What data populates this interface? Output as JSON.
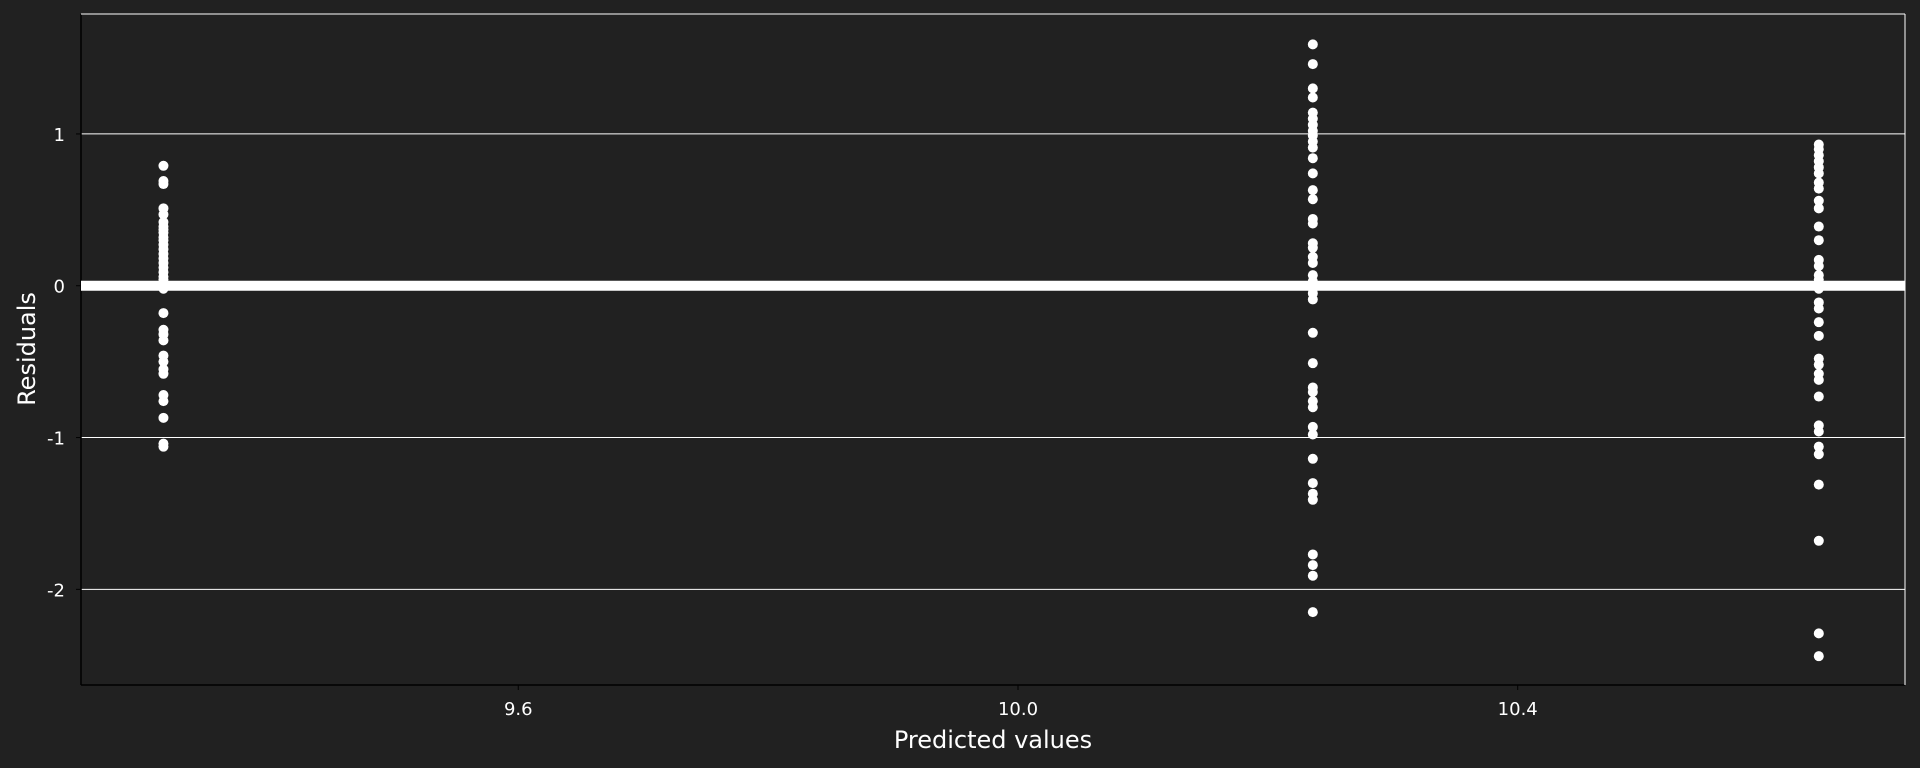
{
  "chart_data": {
    "type": "scatter",
    "title": "",
    "xlabel": "Predicted values",
    "ylabel": "Residuals",
    "xlim": [
      9.25,
      10.71
    ],
    "ylim": [
      -2.63,
      1.79
    ],
    "x_ticks": [
      9.6,
      10.0,
      10.4
    ],
    "x_tick_labels": [
      "9.6",
      "10.0",
      "10.4"
    ],
    "y_ticks": [
      1,
      0,
      -1,
      -2
    ],
    "y_tick_labels": [
      "1",
      "0",
      "-1",
      "-2"
    ],
    "grid": "horizontal",
    "reference_line": 0,
    "colors": {
      "background": "#212121",
      "plot_background": "#212121",
      "points": "#ffffff",
      "text": "#ffffff",
      "grid": "#ffffff"
    },
    "series": [
      {
        "x": 9.316,
        "residuals": [
          0.79,
          0.69,
          0.67,
          0.51,
          0.47,
          0.42,
          0.39,
          0.37,
          0.35,
          0.32,
          0.3,
          0.27,
          0.24,
          0.21,
          0.18,
          0.15,
          0.12,
          0.09,
          0.06,
          0.04,
          0.02,
          0.0,
          -0.02,
          -0.18,
          -0.29,
          -0.32,
          -0.36,
          -0.46,
          -0.5,
          -0.55,
          -0.58,
          -0.72,
          -0.76,
          -0.87,
          -1.04,
          -1.06
        ]
      },
      {
        "x": 10.236,
        "residuals": [
          1.59,
          1.46,
          1.3,
          1.24,
          1.14,
          1.1,
          1.06,
          1.02,
          0.99,
          0.95,
          0.91,
          0.84,
          0.74,
          0.63,
          0.57,
          0.44,
          0.41,
          0.28,
          0.25,
          0.19,
          0.15,
          0.07,
          0.03,
          0.01,
          -0.02,
          -0.05,
          -0.09,
          -0.31,
          -0.51,
          -0.67,
          -0.7,
          -0.76,
          -0.8,
          -0.93,
          -0.98,
          -1.14,
          -1.3,
          -1.37,
          -1.41,
          -1.77,
          -1.84,
          -1.91,
          -2.15
        ]
      },
      {
        "x": 10.641,
        "residuals": [
          0.93,
          0.9,
          0.86,
          0.82,
          0.78,
          0.74,
          0.68,
          0.64,
          0.56,
          0.51,
          0.39,
          0.3,
          0.17,
          0.13,
          0.07,
          0.04,
          0.0,
          -0.02,
          -0.11,
          -0.15,
          -0.24,
          -0.33,
          -0.48,
          -0.52,
          -0.58,
          -0.62,
          -0.73,
          -0.92,
          -0.96,
          -1.06,
          -1.11,
          -1.31,
          -1.68,
          -2.29,
          -2.44
        ]
      }
    ]
  }
}
